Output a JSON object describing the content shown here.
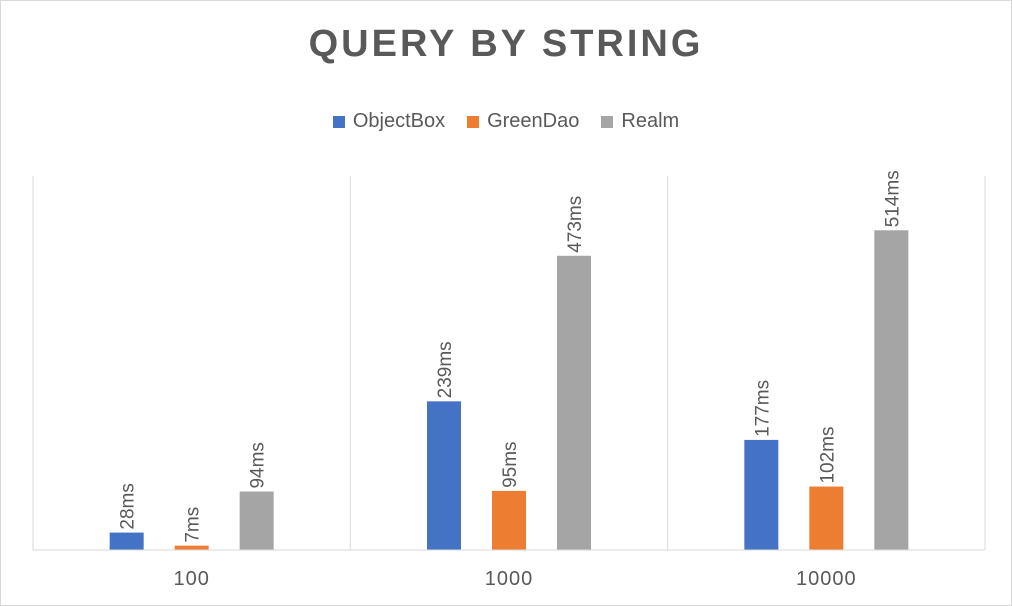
{
  "chart_data": {
    "type": "bar",
    "title": "QUERY BY STRING",
    "categories": [
      "100",
      "1000",
      "10000"
    ],
    "series": [
      {
        "name": "ObjectBox",
        "color": "#4472c4",
        "values": [
          28,
          239,
          177
        ],
        "labels": [
          "28ms",
          "239ms",
          "177ms"
        ]
      },
      {
        "name": "GreenDao",
        "color": "#ed7d31",
        "values": [
          7,
          95,
          102
        ],
        "labels": [
          "7ms",
          "95ms",
          "102ms"
        ]
      },
      {
        "name": "Realm",
        "color": "#a5a5a5",
        "values": [
          94,
          473,
          514
        ],
        "labels": [
          "94ms",
          "473ms",
          "514ms"
        ]
      }
    ],
    "xlabel": "",
    "ylabel": "",
    "ylim": [
      0,
      600
    ],
    "grid": "vertical category separators",
    "legend_position": "top"
  }
}
